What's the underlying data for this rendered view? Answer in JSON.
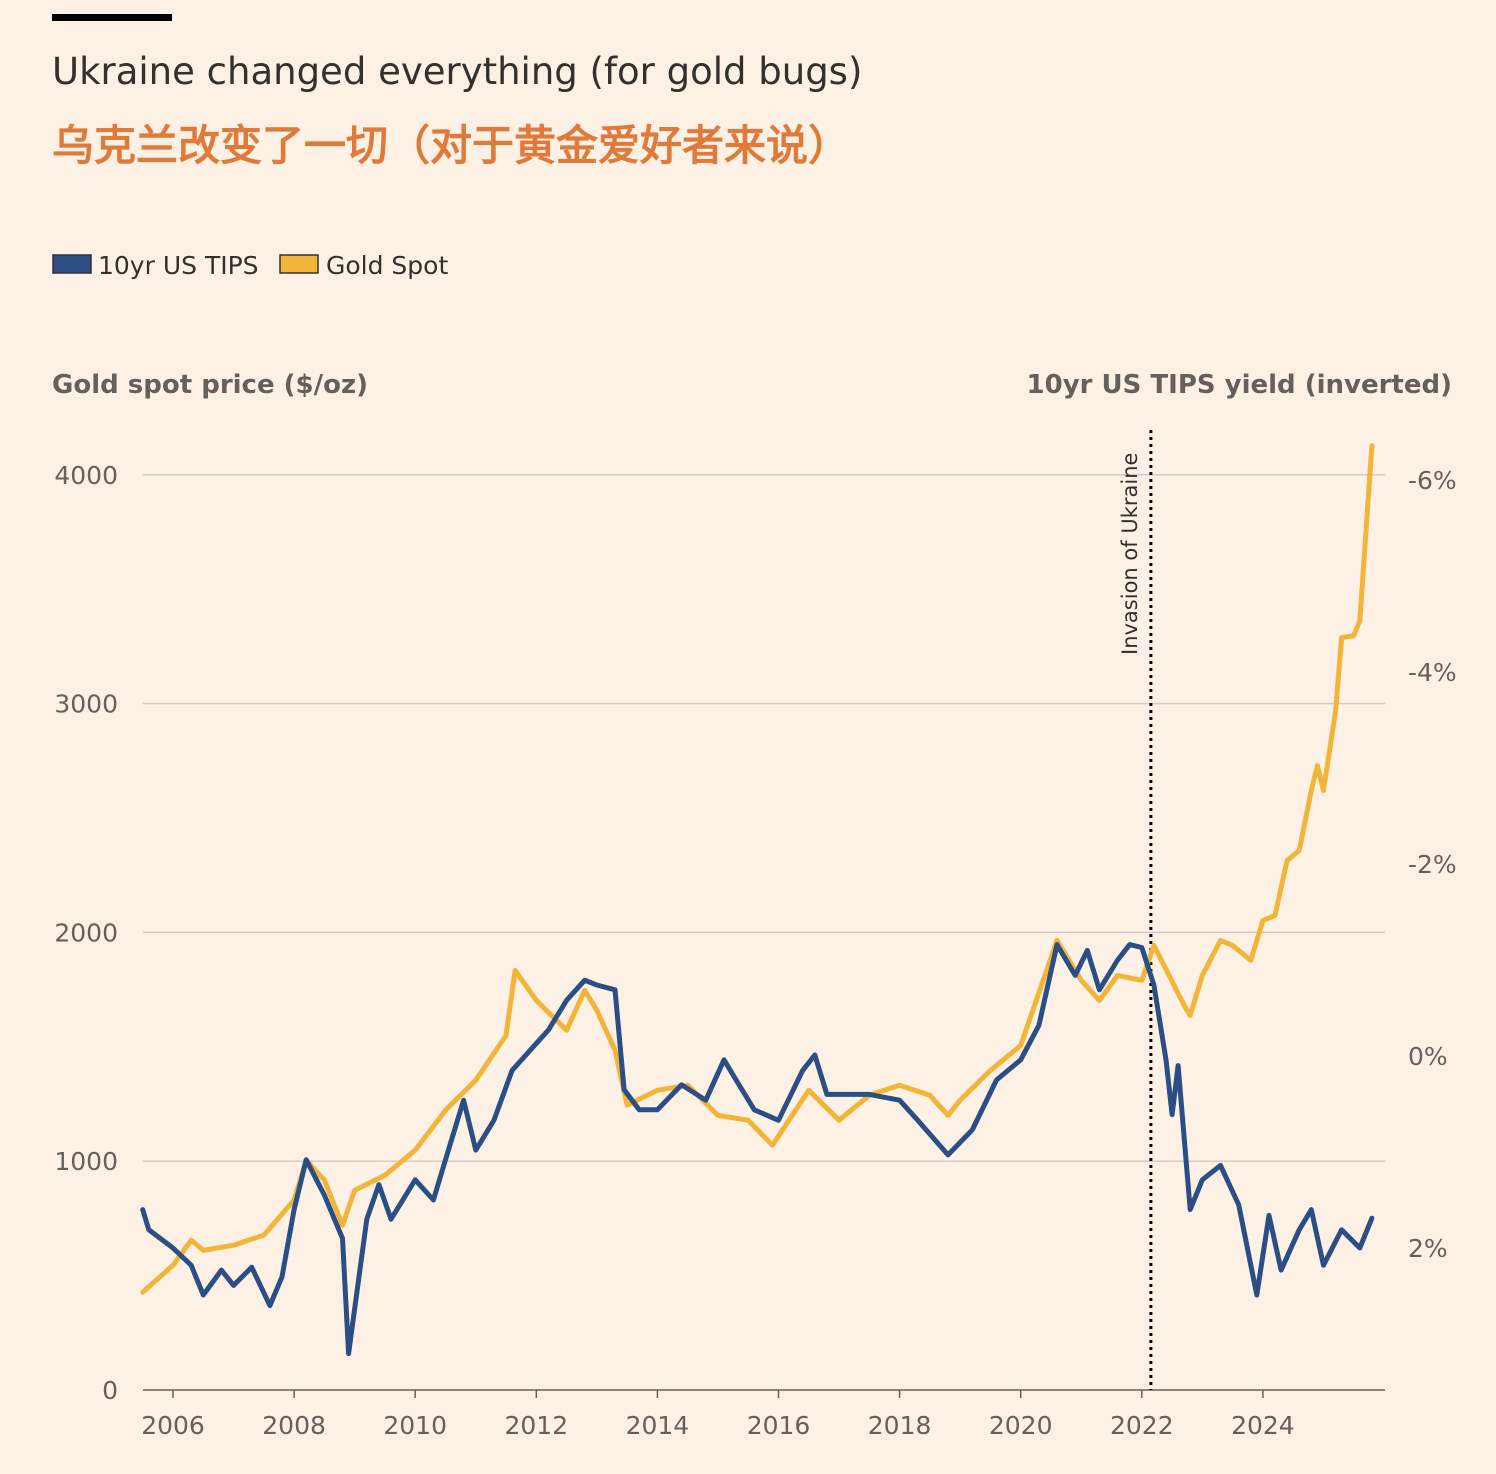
{
  "title": "Ukraine changed everything (for gold bugs)",
  "subtitle": "乌克兰改变了一切（对于黄金爱好者来说）",
  "colors": {
    "background": "#fdf1e6",
    "tips": "#2b4f85",
    "gold": "#f2b53a",
    "subtitle": "#e07a3a",
    "grid": "#d4cbc2"
  },
  "chart_data": {
    "type": "line",
    "left_axis_title": "Gold spot price ($/oz)",
    "right_axis_title": "10yr US TIPS yield (inverted)",
    "x_ticks": [
      "2006",
      "2008",
      "2010",
      "2012",
      "2014",
      "2016",
      "2018",
      "2020",
      "2022",
      "2024"
    ],
    "y_left_ticks": [
      "0",
      "1000",
      "2000",
      "3000",
      "4000"
    ],
    "y_right_ticks": [
      "-6%",
      "-4%",
      "-2%",
      "0%",
      "2%"
    ],
    "y_left_range": [
      0,
      4200
    ],
    "y_right_range_inverted": [
      -6.5,
      3.5
    ],
    "grid": true,
    "legend_placement": "top-left",
    "annotation": {
      "label": "Invasion of Ukraine",
      "x": 2022.15
    },
    "series": [
      {
        "name": "10yr US TIPS",
        "axis": "right",
        "color": "#2b4f85",
        "x": [
          2005.5,
          2005.6,
          2006.0,
          2006.3,
          2006.5,
          2006.8,
          2007.0,
          2007.3,
          2007.6,
          2007.8,
          2008.0,
          2008.2,
          2008.5,
          2008.8,
          2008.9,
          2009.2,
          2009.4,
          2009.6,
          2010.0,
          2010.3,
          2010.5,
          2010.8,
          2011.0,
          2011.3,
          2011.6,
          2011.9,
          2012.2,
          2012.5,
          2012.8,
          2013.0,
          2013.3,
          2013.45,
          2013.7,
          2014.0,
          2014.4,
          2014.8,
          2015.1,
          2015.3,
          2015.6,
          2016.0,
          2016.4,
          2016.6,
          2016.8,
          2017.0,
          2017.5,
          2018.0,
          2018.3,
          2018.8,
          2019.2,
          2019.6,
          2020.0,
          2020.3,
          2020.6,
          2020.9,
          2021.1,
          2021.3,
          2021.6,
          2021.8,
          2022.0,
          2022.2,
          2022.4,
          2022.5,
          2022.6,
          2022.8,
          2023.0,
          2023.3,
          2023.6,
          2023.9,
          2024.1,
          2024.3,
          2024.6,
          2024.8,
          2025.0,
          2025.3,
          2025.6,
          2025.8
        ],
        "values": [
          1.6,
          1.81,
          2.0,
          2.18,
          2.49,
          2.23,
          2.39,
          2.2,
          2.6,
          2.3,
          1.6,
          1.08,
          1.45,
          1.9,
          3.1,
          1.7,
          1.34,
          1.7,
          1.29,
          1.5,
          1.08,
          0.46,
          0.98,
          0.67,
          0.15,
          -0.06,
          -0.27,
          -0.58,
          -0.79,
          -0.74,
          -0.69,
          0.35,
          0.56,
          0.56,
          0.3,
          0.46,
          0.04,
          0.25,
          0.56,
          0.67,
          0.15,
          -0.01,
          0.4,
          0.4,
          0.4,
          0.46,
          0.67,
          1.03,
          0.77,
          0.25,
          0.04,
          -0.32,
          -1.16,
          -0.84,
          -1.1,
          -0.69,
          -1.0,
          -1.16,
          -1.13,
          -0.74,
          0.04,
          0.61,
          0.1,
          1.6,
          1.29,
          1.14,
          1.55,
          2.49,
          1.66,
          2.23,
          1.81,
          1.6,
          2.18,
          1.81,
          2.0,
          1.69
        ]
      },
      {
        "name": "Gold Spot",
        "axis": "left",
        "color": "#f2b53a",
        "x": [
          2005.5,
          2006.0,
          2006.3,
          2006.5,
          2007.0,
          2007.5,
          2008.0,
          2008.2,
          2008.5,
          2008.8,
          2009.0,
          2009.5,
          2010.0,
          2010.5,
          2011.0,
          2011.5,
          2011.65,
          2012.0,
          2012.5,
          2012.8,
          2013.0,
          2013.3,
          2013.5,
          2014.0,
          2014.5,
          2015.0,
          2015.5,
          2015.9,
          2016.5,
          2017.0,
          2017.5,
          2018.0,
          2018.5,
          2018.8,
          2019.0,
          2019.5,
          2020.0,
          2020.6,
          2021.0,
          2021.3,
          2021.6,
          2022.0,
          2022.2,
          2022.7,
          2022.8,
          2023.0,
          2023.3,
          2023.5,
          2023.8,
          2024.0,
          2024.2,
          2024.4,
          2024.6,
          2024.8,
          2024.9,
          2025.0,
          2025.2,
          2025.3,
          2025.5,
          2025.6,
          2025.8
        ],
        "values": [
          428,
          545,
          655,
          610,
          633,
          677,
          830,
          1004,
          917,
          720,
          873,
          939,
          1048,
          1223,
          1354,
          1550,
          1834,
          1703,
          1572,
          1747,
          1660,
          1485,
          1245,
          1310,
          1332,
          1200,
          1179,
          1070,
          1310,
          1179,
          1288,
          1332,
          1288,
          1200,
          1266,
          1397,
          1506,
          1965,
          1790,
          1703,
          1812,
          1790,
          1943,
          1681,
          1637,
          1812,
          1965,
          1943,
          1878,
          2052,
          2074,
          2314,
          2358,
          2620,
          2729,
          2620,
          2969,
          3288,
          3297,
          3362,
          4127
        ]
      }
    ]
  }
}
